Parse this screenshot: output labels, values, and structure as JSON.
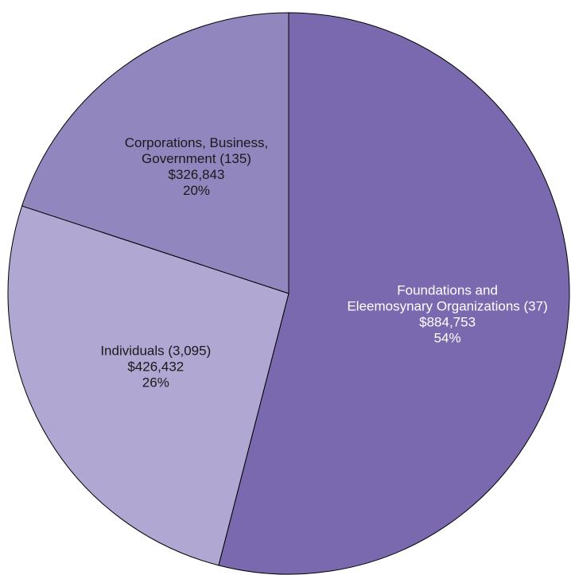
{
  "chart_data": {
    "type": "pie",
    "start_angle_deg": 0,
    "direction": "clockwise",
    "slices": [
      {
        "label_lines": [
          "Foundations and",
          "Eleemosynary Organizations (37)"
        ],
        "amount": "$884,753",
        "percent_label": "54%",
        "value": 884753,
        "color": "#7a69ae",
        "label_color": "#ffffff"
      },
      {
        "label_lines": [
          "Individuals (3,095)"
        ],
        "amount": "$426,432",
        "percent_label": "26%",
        "value": 426432,
        "color": "#b1a7d3",
        "label_color": "#1a1a1a"
      },
      {
        "label_lines": [
          "Corporations, Business,",
          "Government (135)"
        ],
        "amount": "$326,843",
        "percent_label": "20%",
        "value": 326843,
        "color": "#9286be",
        "label_color": "#1a1a1a"
      }
    ]
  }
}
